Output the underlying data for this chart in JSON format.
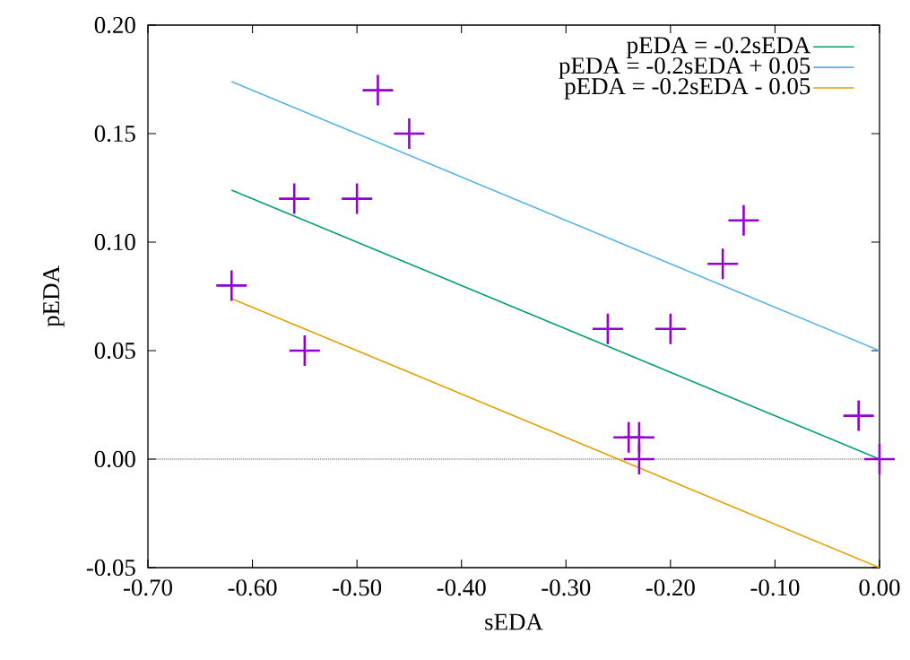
{
  "chart_data": {
    "type": "line",
    "xlabel": "sEDA",
    "ylabel": "pEDA",
    "xlim": [
      -0.7,
      0.0
    ],
    "ylim": [
      -0.05,
      0.2
    ],
    "xticks": [
      {
        "value": -0.7,
        "label": "-0.70"
      },
      {
        "value": -0.6,
        "label": "-0.60"
      },
      {
        "value": -0.5,
        "label": "-0.50"
      },
      {
        "value": -0.4,
        "label": "-0.40"
      },
      {
        "value": -0.3,
        "label": "-0.30"
      },
      {
        "value": -0.2,
        "label": "-0.20"
      },
      {
        "value": -0.1,
        "label": "-0.10"
      },
      {
        "value": 0.0,
        "label": "0.00"
      }
    ],
    "yticks": [
      {
        "value": -0.05,
        "label": "-0.05"
      },
      {
        "value": 0.0,
        "label": "0.00"
      },
      {
        "value": 0.05,
        "label": "0.05"
      },
      {
        "value": 0.1,
        "label": "0.10"
      },
      {
        "value": 0.15,
        "label": "0.15"
      },
      {
        "value": 0.2,
        "label": "0.20"
      }
    ],
    "legend": "top right",
    "line_style": "solid",
    "ref_lines": [
      {
        "axis": "y",
        "value": 0,
        "color": "#000000",
        "line_style": "dotted"
      }
    ],
    "series": [
      {
        "name": "pEDA = -0.2sEDA",
        "color": "#009e73",
        "x": [
          -0.62,
          0.0
        ],
        "values": [
          0.124,
          0.0
        ]
      },
      {
        "name": "pEDA = -0.2sEDA + 0.05",
        "color": "#56b4e9",
        "x": [
          -0.62,
          0.0
        ],
        "values": [
          0.174,
          0.05
        ]
      },
      {
        "name": "pEDA = -0.2sEDA - 0.05",
        "color": "#e69f00",
        "x": [
          -0.62,
          0.0
        ],
        "values": [
          0.074,
          -0.05
        ]
      },
      {
        "type": "scatter",
        "marker": "cross",
        "color": "#9400d3",
        "x": [
          -0.62,
          -0.55,
          -0.56,
          -0.5,
          -0.48,
          -0.45,
          -0.26,
          -0.2,
          -0.15,
          -0.13,
          -0.24,
          -0.23,
          -0.23,
          -0.02,
          0.0
        ],
        "values": [
          0.08,
          0.05,
          0.12,
          0.12,
          0.17,
          0.15,
          0.06,
          0.06,
          0.09,
          0.11,
          0.01,
          0.01,
          0.0,
          0.02,
          0.0
        ]
      }
    ]
  }
}
